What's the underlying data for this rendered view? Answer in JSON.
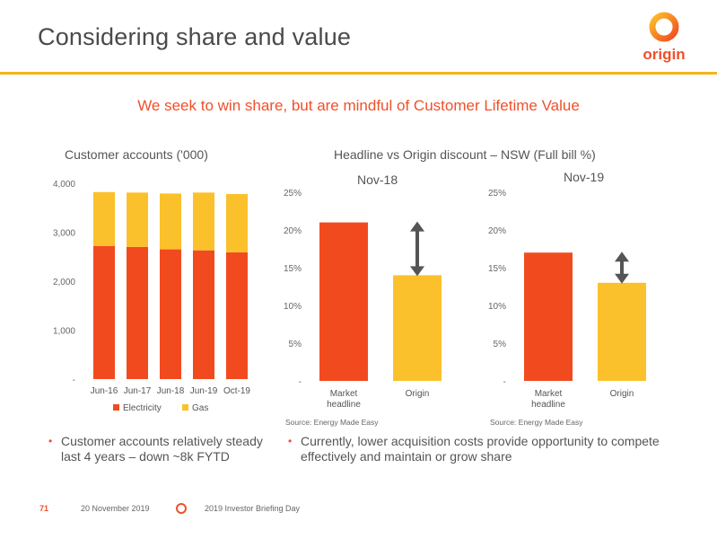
{
  "header": {
    "title": "Considering share and value",
    "brand": "origin"
  },
  "subtitle": "We seek to win share, but are mindful of Customer Lifetime Value",
  "colors": {
    "electricity": "#f24a1f",
    "gas": "#fbc12c",
    "accent": "#f0502a",
    "rule": "#f6b31c",
    "arrow": "#555555"
  },
  "left_chart": {
    "title": "Customer accounts ('000)",
    "legend": [
      "Electricity",
      "Gas"
    ]
  },
  "right_section": {
    "title": "Headline vs Origin discount – NSW (Full bill %)",
    "period_left": "Nov-18",
    "period_right": "Nov-19",
    "source_left": "Source: Energy Made Easy",
    "source_right": "Source: Energy Made Easy"
  },
  "chart_data": [
    {
      "type": "bar",
      "stacked": true,
      "title": "Customer accounts ('000)",
      "categories": [
        "Jun-16",
        "Jun-17",
        "Jun-18",
        "Jun-19",
        "Oct-19"
      ],
      "series": [
        {
          "name": "Electricity",
          "values": [
            2720,
            2700,
            2650,
            2630,
            2590
          ]
        },
        {
          "name": "Gas",
          "values": [
            1100,
            1110,
            1140,
            1180,
            1190
          ]
        }
      ],
      "ylim": [
        0,
        4000
      ],
      "yticks": [
        "-",
        "1,000",
        "2,000",
        "3,000",
        "4,000"
      ],
      "legend_position": "bottom",
      "grid": false
    },
    {
      "type": "bar",
      "title": "Nov-18",
      "categories": [
        "Market headline",
        "Origin"
      ],
      "values": [
        21,
        14
      ],
      "ylim": [
        0,
        25
      ],
      "yticks": [
        "-",
        "5%",
        "10%",
        "15%",
        "20%",
        "25%"
      ],
      "annotation": "double arrow between headline and Origin",
      "grid": false
    },
    {
      "type": "bar",
      "title": "Nov-19",
      "categories": [
        "Market headline",
        "Origin"
      ],
      "values": [
        17,
        13
      ],
      "ylim": [
        0,
        25
      ],
      "yticks": [
        "-",
        "5%",
        "10%",
        "15%",
        "20%",
        "25%"
      ],
      "annotation": "double arrow between headline and Origin",
      "grid": false
    }
  ],
  "bullets": {
    "left": "Customer accounts relatively steady last 4 years – down ~8k FYTD",
    "right": "Currently, lower acquisition costs provide opportunity to compete effectively and maintain or grow share"
  },
  "footer": {
    "page": "71",
    "date": "20 November 2019",
    "event": "2019 Investor Briefing Day"
  }
}
